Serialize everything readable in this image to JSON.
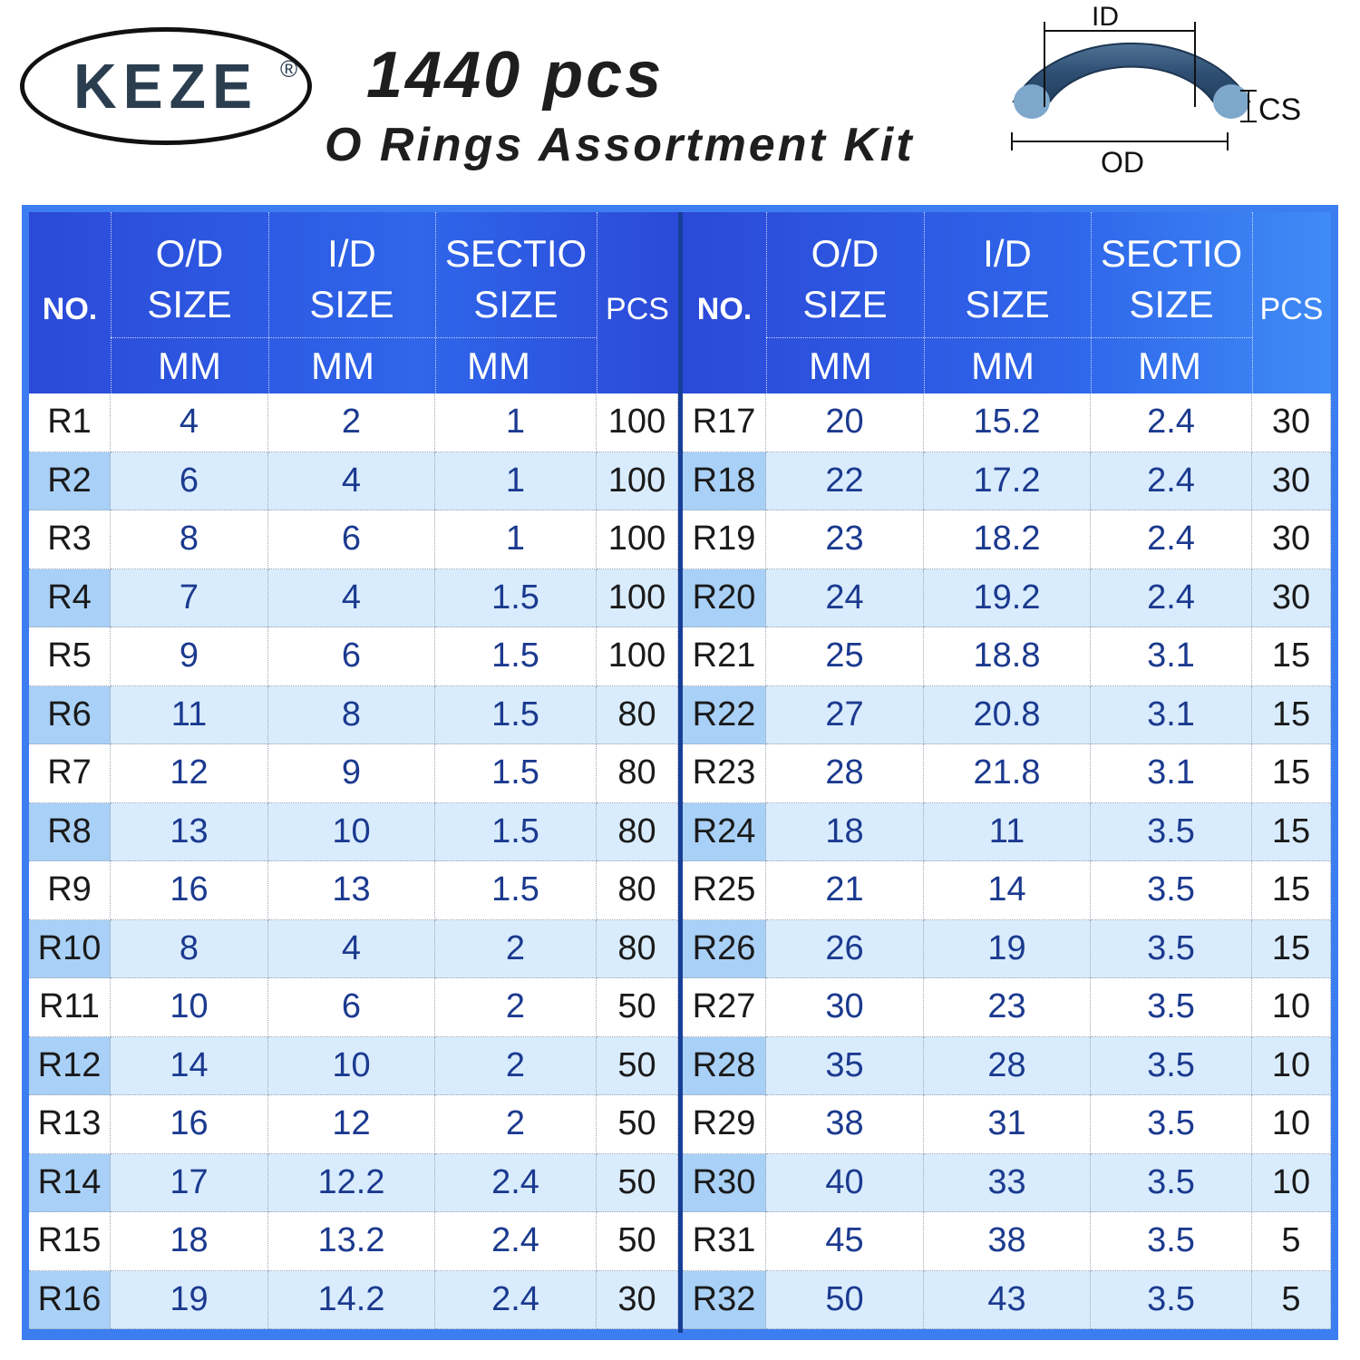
{
  "header": {
    "brand": "KEZE",
    "brand_mark": "®",
    "title_line1": "1440 pcs",
    "title_line2": "O Rings Assortment Kit"
  },
  "diagram": {
    "label_id": "ID",
    "label_cs": "CS",
    "label_od": "OD",
    "ring_color": "#2f4f73"
  },
  "table": {
    "headers": {
      "no": "NO.",
      "od_line1": "O/D",
      "od_line2": "SIZE",
      "id_line1": "I/D",
      "id_line2": "SIZE",
      "sec_line1": "SECTIO",
      "sec_line2": "SIZE",
      "pcs": "PCS",
      "unit": "MM"
    },
    "left_rows": [
      [
        "R1",
        "4",
        "2",
        "1",
        "100"
      ],
      [
        "R2",
        "6",
        "4",
        "1",
        "100"
      ],
      [
        "R3",
        "8",
        "6",
        "1",
        "100"
      ],
      [
        "R4",
        "7",
        "4",
        "1.5",
        "100"
      ],
      [
        "R5",
        "9",
        "6",
        "1.5",
        "100"
      ],
      [
        "R6",
        "11",
        "8",
        "1.5",
        "80"
      ],
      [
        "R7",
        "12",
        "9",
        "1.5",
        "80"
      ],
      [
        "R8",
        "13",
        "10",
        "1.5",
        "80"
      ],
      [
        "R9",
        "16",
        "13",
        "1.5",
        "80"
      ],
      [
        "R10",
        "8",
        "4",
        "2",
        "80"
      ],
      [
        "R11",
        "10",
        "6",
        "2",
        "50"
      ],
      [
        "R12",
        "14",
        "10",
        "2",
        "50"
      ],
      [
        "R13",
        "16",
        "12",
        "2",
        "50"
      ],
      [
        "R14",
        "17",
        "12.2",
        "2.4",
        "50"
      ],
      [
        "R15",
        "18",
        "13.2",
        "2.4",
        "50"
      ],
      [
        "R16",
        "19",
        "14.2",
        "2.4",
        "30"
      ]
    ],
    "right_rows": [
      [
        "R17",
        "20",
        "15.2",
        "2.4",
        "30"
      ],
      [
        "R18",
        "22",
        "17.2",
        "2.4",
        "30"
      ],
      [
        "R19",
        "23",
        "18.2",
        "2.4",
        "30"
      ],
      [
        "R20",
        "24",
        "19.2",
        "2.4",
        "30"
      ],
      [
        "R21",
        "25",
        "18.8",
        "3.1",
        "15"
      ],
      [
        "R22",
        "27",
        "20.8",
        "3.1",
        "15"
      ],
      [
        "R23",
        "28",
        "21.8",
        "3.1",
        "15"
      ],
      [
        "R24",
        "18",
        "11",
        "3.5",
        "15"
      ],
      [
        "R25",
        "21",
        "14",
        "3.5",
        "15"
      ],
      [
        "R26",
        "26",
        "19",
        "3.5",
        "15"
      ],
      [
        "R27",
        "30",
        "23",
        "3.5",
        "10"
      ],
      [
        "R28",
        "35",
        "28",
        "3.5",
        "10"
      ],
      [
        "R29",
        "38",
        "31",
        "3.5",
        "10"
      ],
      [
        "R30",
        "40",
        "33",
        "3.5",
        "10"
      ],
      [
        "R31",
        "45",
        "38",
        "3.5",
        "5"
      ],
      [
        "R32",
        "50",
        "43",
        "3.5",
        "5"
      ]
    ]
  }
}
